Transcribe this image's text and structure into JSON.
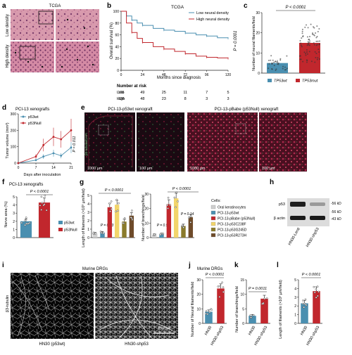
{
  "panel_letters": [
    "a",
    "b",
    "c",
    "d",
    "e",
    "f",
    "g",
    "h",
    "i",
    "j",
    "k",
    "l"
  ],
  "a": {
    "title": "TCGA",
    "row_labels": [
      "Low density",
      "High density"
    ]
  },
  "b": {
    "title": "TCGA",
    "ylabel": "Overall survival (%)",
    "xlabel": "Months since diagnosis",
    "pvalue": "P = 0.0001",
    "at_risk_title": "Number at risk",
    "at_risk_rows": [
      {
        "label": "Low",
        "values": [
          "105",
          "49",
          "25",
          "11",
          "7",
          "5"
        ]
      },
      {
        "label": "High",
        "values": [
          "126",
          "48",
          "23",
          "8",
          "3",
          "3"
        ]
      }
    ]
  },
  "c": {
    "pvalue": "P < 0.0001",
    "ylabel": "Number of neural filaments/field",
    "xlabel_1": "TP53wt",
    "xlabel_2": "TP53mut"
  },
  "d": {
    "title": "PCI-13 xenografts",
    "ylabel": "Tumor volume (mm³)",
    "xlabel": "Days after inoculation",
    "pvalue": "P = 0.011",
    "legend": [
      "p53wt",
      "p53Null"
    ]
  },
  "e": {
    "title_left": "PCI-13-p53wt xenograft",
    "title_right": "PCI-13-pBabe (p53Null) xenograft",
    "stain_label": "β3-tubulin/DAPI",
    "scalebars": [
      "1000 µm",
      "100 µm",
      "1000 µm",
      "100 µm"
    ]
  },
  "f": {
    "title": "PCI-13 xenografts",
    "pvalue": "P < 0.0001",
    "ylabel": "Nerve area (%)",
    "legend": [
      "p53wt",
      "p53Null"
    ]
  },
  "g": {
    "pvalue_left": "P < 0.0001",
    "pvalue_left_ns": "P = 0.93",
    "ylabel_left": "Length of filaments (×10³ µm/field)",
    "pvalue_right": "P < 0.0001",
    "pvalue_right_ns1": "P = 0.93",
    "pvalue_right_ns2": "P = 0.14",
    "ylabel_right": "Number of branchings/field",
    "legend_title": "Cells:",
    "legend": [
      "Oral keratinocytes",
      "PCI-13-p53wt",
      "PCI-13-pBabe (p53Null)",
      "PCI-13-p53C238F",
      "PCI-13-p53G245D",
      "PCI-13-p53R273H"
    ]
  },
  "h": {
    "labels": [
      "p53",
      "β actin"
    ],
    "kd": [
      "-56 kD",
      "-56 kD",
      "-43 kD"
    ],
    "xlabels": [
      "HN30-Lenti",
      "HN30-shp53"
    ]
  },
  "i": {
    "title": "Murine DRGs",
    "stain": "β3-tubulin",
    "scalebar": "100 µm",
    "caption_left": "HN30 (p53wt)",
    "caption_right": "HN30-shp53"
  },
  "j": {
    "title": "Murine DRGs",
    "pvalue": "P < 0.0001",
    "ylabel": "Number of Neural filaments/field",
    "xlabels": [
      "HN30",
      "HN30-shp53"
    ]
  },
  "k": {
    "pvalue": "P = 0.0011",
    "ylabel": "Number of branchings/field",
    "xlabels": [
      "HN30",
      "HN30-shp53"
    ]
  },
  "l": {
    "pvalue": "P < 0.0001",
    "ylabel": "Length of filaments (×10³ µm/field)",
    "xlabels": [
      "HN30",
      "HN30-shp53"
    ]
  },
  "colors": {
    "blue": "#4a8fb0",
    "red": "#c1272d",
    "yellow": "#f2d56b",
    "olive": "#8a7a2b",
    "brown": "#6e4b2a",
    "grey": "#cfcfcf"
  },
  "chart_data": [
    {
      "panel": "b",
      "type": "line",
      "xlim": [
        0,
        120
      ],
      "ylim": [
        0,
        100
      ],
      "xticks": [
        0,
        24,
        48,
        72,
        96,
        120
      ],
      "yticks": [
        0,
        20,
        40,
        60,
        80,
        100
      ],
      "series": [
        {
          "name": "Low neural density",
          "x": [
            0,
            6,
            12,
            18,
            24,
            36,
            48,
            60,
            72,
            84,
            96,
            108,
            120
          ],
          "y": [
            100,
            92,
            85,
            80,
            76,
            71,
            68,
            66,
            63,
            60,
            58,
            55,
            54
          ]
        },
        {
          "name": "High neural density",
          "x": [
            0,
            6,
            12,
            18,
            24,
            36,
            48,
            60,
            72,
            84,
            96,
            108,
            120
          ],
          "y": [
            100,
            80,
            64,
            54,
            47,
            40,
            36,
            32,
            28,
            24,
            22,
            21,
            20
          ]
        }
      ]
    },
    {
      "panel": "c",
      "type": "bar",
      "ylim": [
        0,
        30
      ],
      "categories": [
        "TP53wt",
        "TP53mut"
      ],
      "values": [
        5,
        15
      ]
    },
    {
      "panel": "d",
      "type": "line",
      "xlim": [
        0,
        21
      ],
      "ylim": [
        0,
        300
      ],
      "xticks": [
        0,
        7,
        14,
        21
      ],
      "yticks": [
        0,
        100,
        200,
        300
      ],
      "series": [
        {
          "name": "p53wt",
          "x": [
            0,
            7,
            10,
            14,
            17,
            21
          ],
          "y": [
            0,
            18,
            40,
            60,
            45,
            95
          ]
        },
        {
          "name": "p53Null",
          "x": [
            0,
            7,
            10,
            14,
            17,
            21
          ],
          "y": [
            0,
            40,
            110,
            160,
            145,
            200
          ]
        }
      ]
    },
    {
      "panel": "f",
      "type": "bar",
      "ylim": [
        0,
        5
      ],
      "yticks": [
        0,
        1,
        2,
        3,
        4,
        5
      ],
      "categories": [
        "p53wt",
        "p53Null"
      ],
      "values": [
        2.0,
        4.3
      ]
    },
    {
      "panel": "g-left",
      "type": "bar",
      "ylim": [
        0,
        5
      ],
      "yticks": [
        0,
        1,
        2,
        3,
        4,
        5
      ],
      "categories": [
        "Oral keratinocytes",
        "PCI-13-p53wt",
        "PCI-13-pBabe (p53Null)",
        "PCI-13-p53C238F",
        "PCI-13-p53G245D",
        "PCI-13-p53R273H"
      ],
      "values": [
        0.5,
        0.6,
        3.6,
        3.9,
        1.9,
        2.6
      ]
    },
    {
      "panel": "g-right",
      "type": "bar",
      "ylim": [
        0,
        30
      ],
      "yticks": [
        0,
        10,
        20,
        30
      ],
      "categories": [
        "Oral keratinocytes",
        "PCI-13-p53wt",
        "PCI-13-pBabe (p53Null)",
        "PCI-13-p53C238F",
        "PCI-13-p53G245D",
        "PCI-13-p53R273H"
      ],
      "values": [
        2,
        2.5,
        23,
        27,
        8,
        14
      ]
    },
    {
      "panel": "j",
      "type": "bar",
      "ylim": [
        0,
        30
      ],
      "yticks": [
        0,
        10,
        20,
        30
      ],
      "categories": [
        "HN30",
        "HN30-shp53"
      ],
      "values": [
        8,
        24
      ]
    },
    {
      "panel": "k",
      "type": "bar",
      "ylim": [
        0,
        15
      ],
      "yticks": [
        0,
        5,
        10,
        15
      ],
      "categories": [
        "HN30",
        "HN30-shp53"
      ],
      "values": [
        2.6,
        8.5
      ]
    },
    {
      "panel": "l",
      "type": "bar",
      "ylim": [
        0,
        5
      ],
      "yticks": [
        0,
        1,
        2,
        3,
        4,
        5
      ],
      "categories": [
        "HN30",
        "HN30-shp53"
      ],
      "values": [
        2.3,
        3.7
      ]
    }
  ]
}
